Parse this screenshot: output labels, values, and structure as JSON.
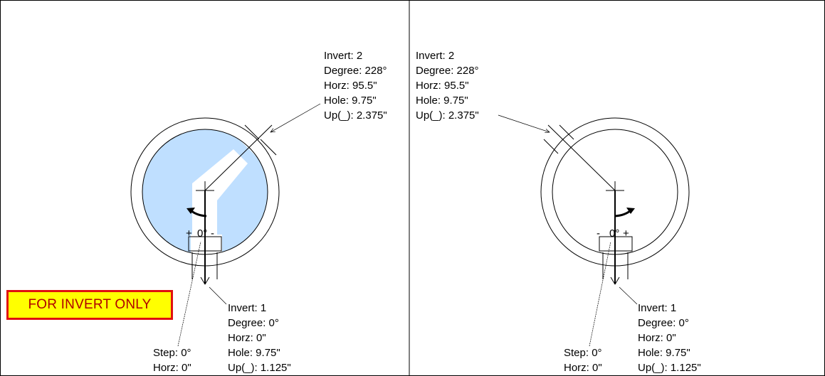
{
  "banner": {
    "text": "FOR INVERT ONLY"
  },
  "colors": {
    "fill": "#bfdfff",
    "banner_bg": "#ffff00",
    "banner_border": "#e01010",
    "banner_text": "#b00000"
  },
  "left": {
    "top_label": [
      "Invert: 2",
      "Degree: 228°",
      "Horz: 95.5\"",
      "Hole: 9.75\"",
      "Up(_): 2.375\""
    ],
    "bottom_label": [
      "Invert: 1",
      "Degree: 0°",
      "Horz: 0\"",
      "Hole: 9.75\"",
      "Up(_): 1.125\""
    ],
    "step_label": [
      "Step: 0°",
      "Horz: 0\""
    ],
    "dial": {
      "plus": "+",
      "zero": "0°",
      "minus": "-"
    }
  },
  "right": {
    "top_label": [
      "Invert: 2",
      "Degree: 228°",
      "Horz: 95.5\"",
      "Hole: 9.75\"",
      "Up(_): 2.375\""
    ],
    "bottom_label": [
      "Invert: 1",
      "Degree: 0°",
      "Horz: 0\"",
      "Hole: 9.75\"",
      "Up(_): 1.125\""
    ],
    "step_label": [
      "Step: 0°",
      "Horz: 0\""
    ],
    "dial": {
      "minus": "-",
      "zero": "0°",
      "plus": "+"
    }
  }
}
